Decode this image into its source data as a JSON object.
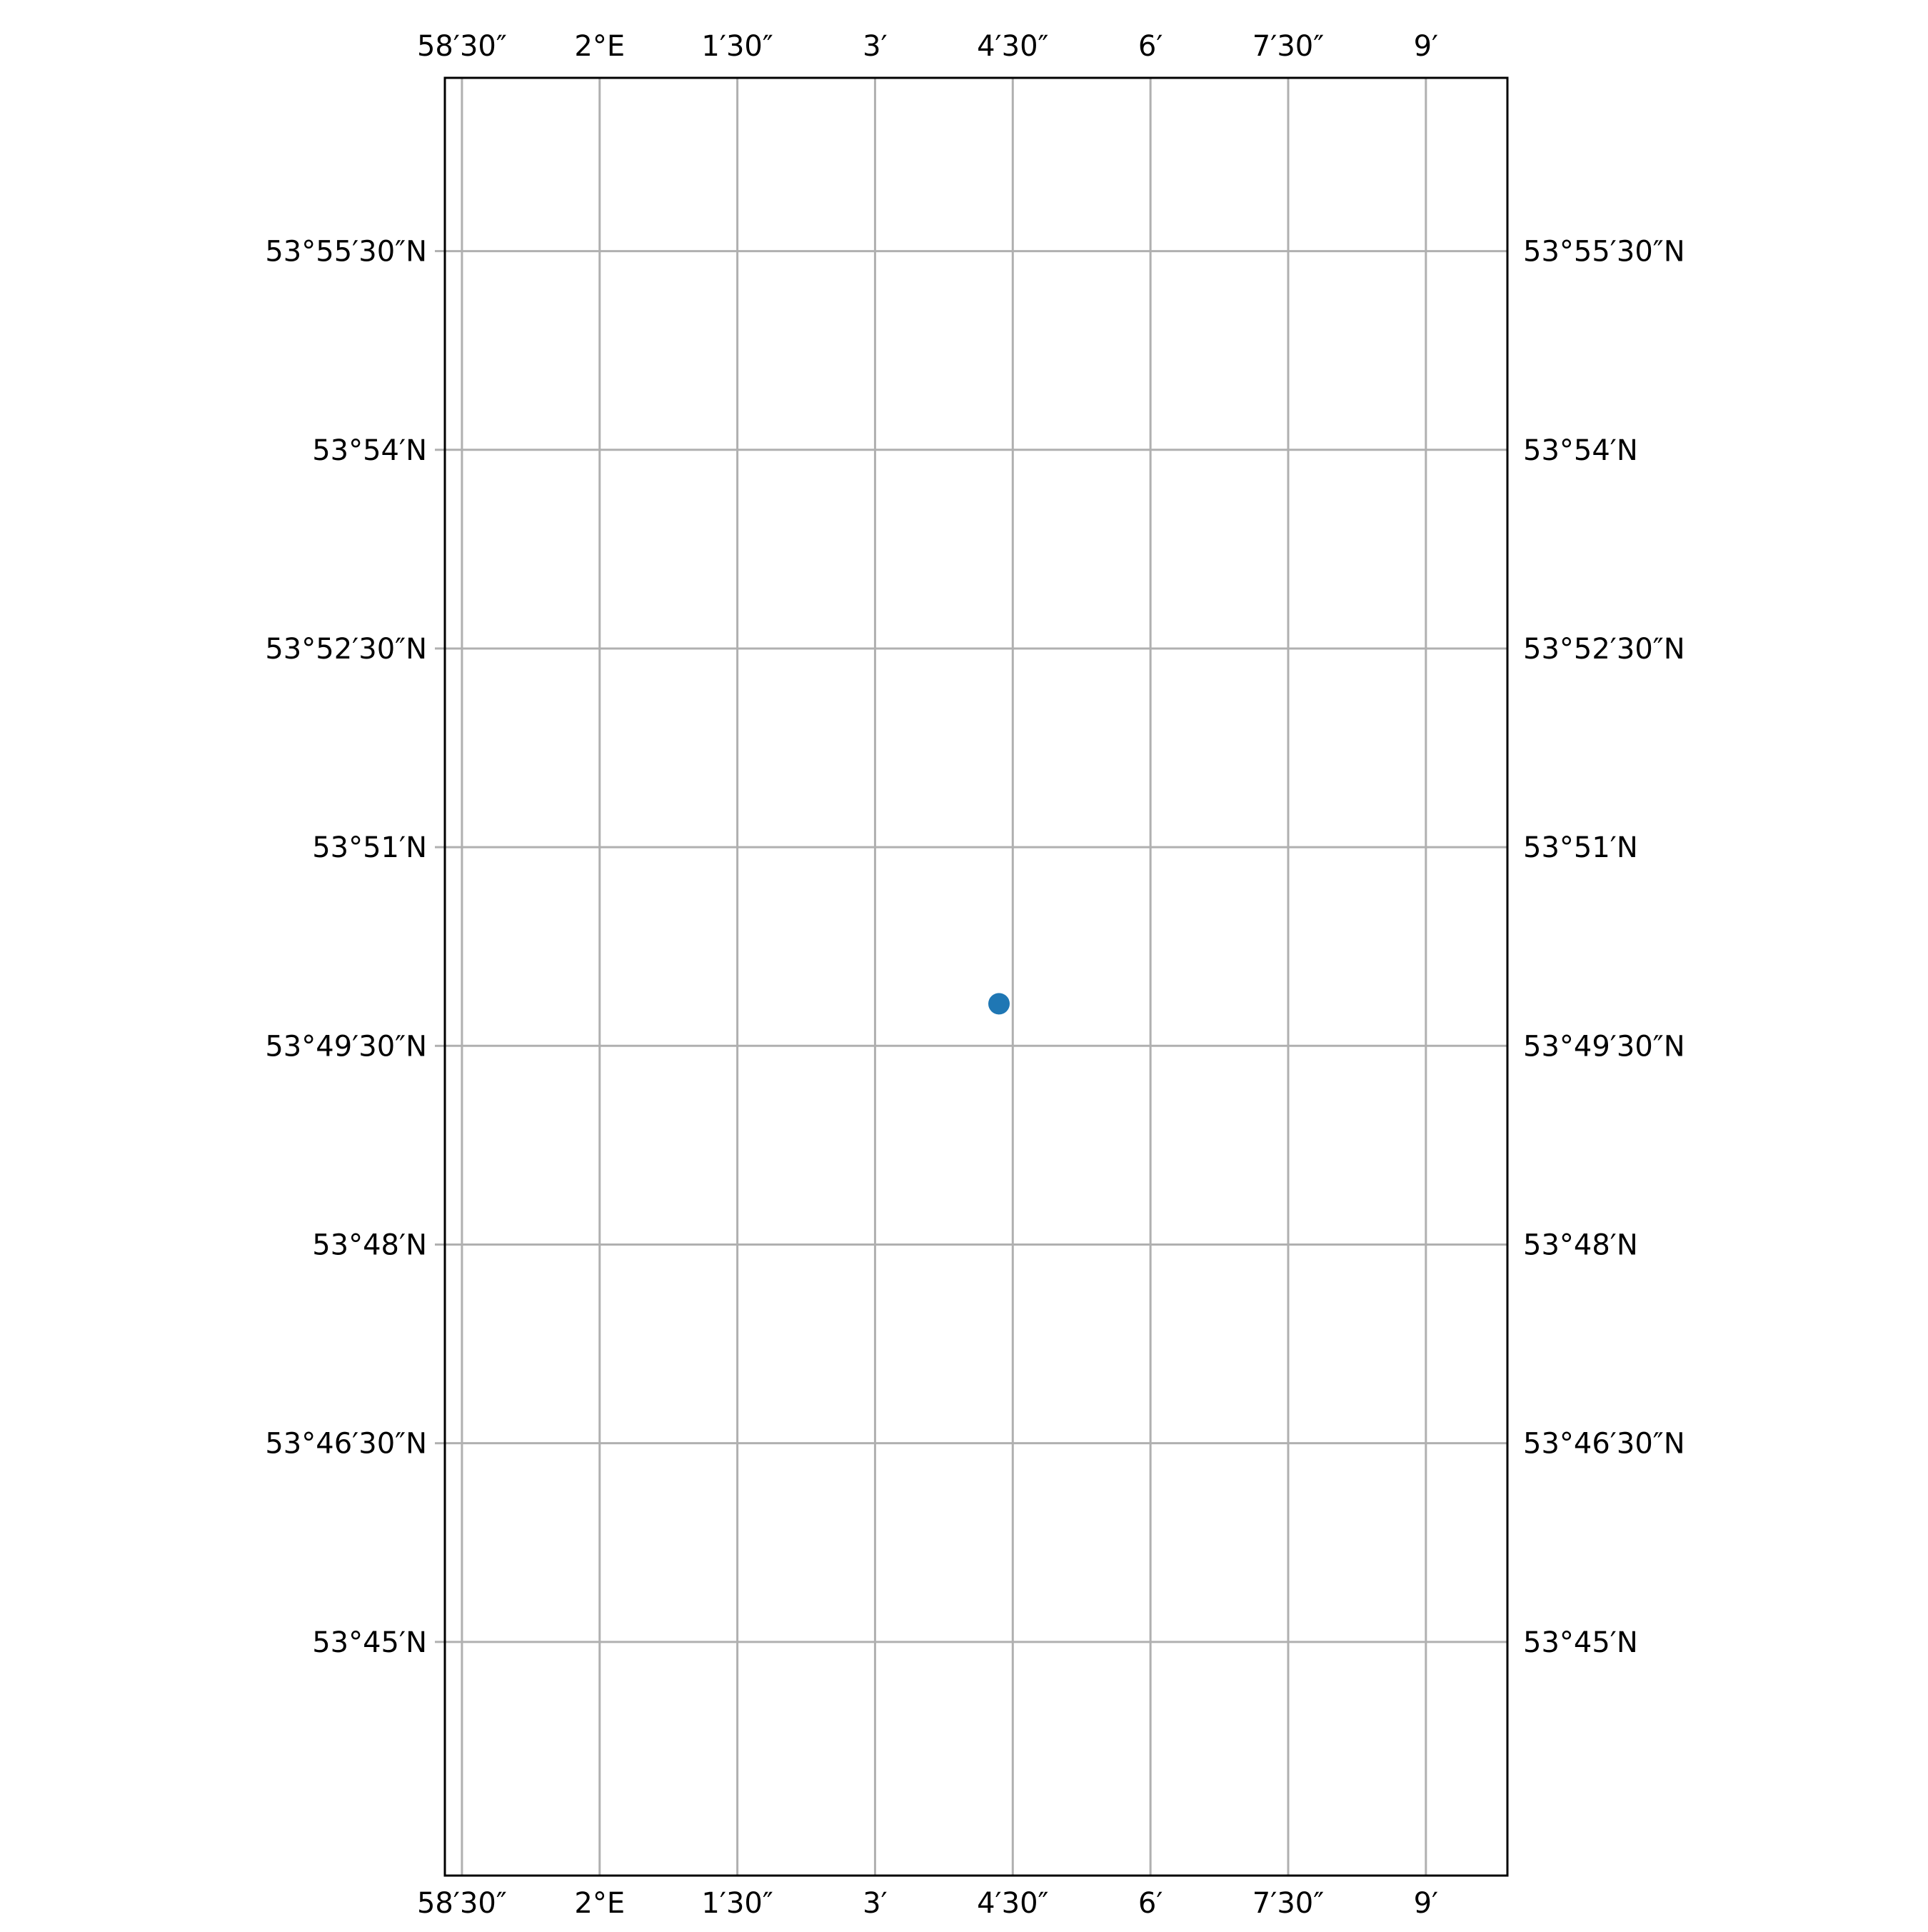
{
  "chart_data": {
    "type": "scatter",
    "projection": "lat-lon graticule",
    "xlim": [
      1.9719,
      2.1648
    ],
    "ylim": [
      53.7206,
      53.9468
    ],
    "x_ticks": [
      {
        "value": 1.975,
        "label": "58′30″"
      },
      {
        "value": 2.0,
        "label": "2°E"
      },
      {
        "value": 2.025,
        "label": "1′30″"
      },
      {
        "value": 2.05,
        "label": "3′"
      },
      {
        "value": 2.075,
        "label": "4′30″"
      },
      {
        "value": 2.1,
        "label": "6′"
      },
      {
        "value": 2.125,
        "label": "7′30″"
      },
      {
        "value": 2.15,
        "label": "9′"
      }
    ],
    "y_ticks": [
      {
        "value": 53.925,
        "label": "53°55′30″N"
      },
      {
        "value": 53.9,
        "label": "53°54′N"
      },
      {
        "value": 53.875,
        "label": "53°52′30″N"
      },
      {
        "value": 53.85,
        "label": "53°51′N"
      },
      {
        "value": 53.825,
        "label": "53°49′30″N"
      },
      {
        "value": 53.8,
        "label": "53°48′N"
      },
      {
        "value": 53.775,
        "label": "53°46′30″N"
      },
      {
        "value": 53.75,
        "label": "53°45′N"
      }
    ],
    "tick_labels_on": [
      "top",
      "bottom",
      "left",
      "right"
    ],
    "grid": true,
    "points": [
      {
        "lon": 2.0725,
        "lat": 53.8303
      }
    ],
    "colors": {
      "point": "#1f77b4",
      "grid": "#b0b0b0",
      "frame": "#000000"
    }
  }
}
